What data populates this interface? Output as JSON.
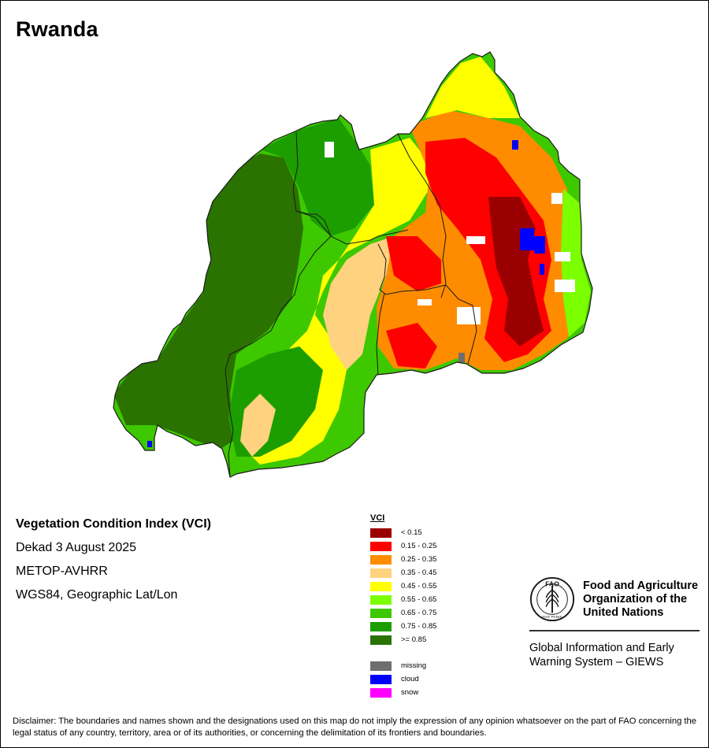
{
  "map": {
    "title": "Rwanda",
    "colors": {
      "outside_country": "#ffffff",
      "boundary": "#1a1a1a"
    }
  },
  "info": {
    "product": "Vegetation Condition Index (VCI)",
    "period": "Dekad 3 August 2025",
    "sensor": "METOP-AVHRR",
    "projection": "WGS84, Geographic Lat/Lon"
  },
  "legend": {
    "title": "VCI",
    "classes": [
      {
        "label": "< 0.15",
        "color": "#9b0000"
      },
      {
        "label": "0.15 - 0.25",
        "color": "#ff0000"
      },
      {
        "label": "0.25 - 0.35",
        "color": "#ff8c00"
      },
      {
        "label": "0.35 - 0.45",
        "color": "#ffd27f"
      },
      {
        "label": "0.45 - 0.55",
        "color": "#ffff00"
      },
      {
        "label": "0.55 - 0.65",
        "color": "#7cff00"
      },
      {
        "label": "0.65 - 0.75",
        "color": "#3ec800"
      },
      {
        "label": "0.75 - 0.85",
        "color": "#1c9e00"
      },
      {
        "label": ">= 0.85",
        "color": "#2a7300"
      }
    ],
    "special": [
      {
        "label": "missing",
        "color": "#6e6e6e"
      },
      {
        "label": "cloud",
        "color": "#0000ff"
      },
      {
        "label": "snow",
        "color": "#ff00ff"
      }
    ]
  },
  "organization": {
    "name_line1": "Food and Agriculture",
    "name_line2": "Organization of the",
    "name_line3": "United Nations",
    "system_line1": "Global Information and Early",
    "system_line2": "Warning System – GIEWS",
    "logo_letters": "FAO",
    "logo_motto": "FIAT PANIS"
  },
  "disclaimer": "Disclaimer: The boundaries and names shown and the designations used on this map do not imply the expression of any opinion whatsoever on the part of FAO concerning the legal status of any country, territory, area or of its authorities, or concerning the delimitation of its frontiers and boundaries."
}
